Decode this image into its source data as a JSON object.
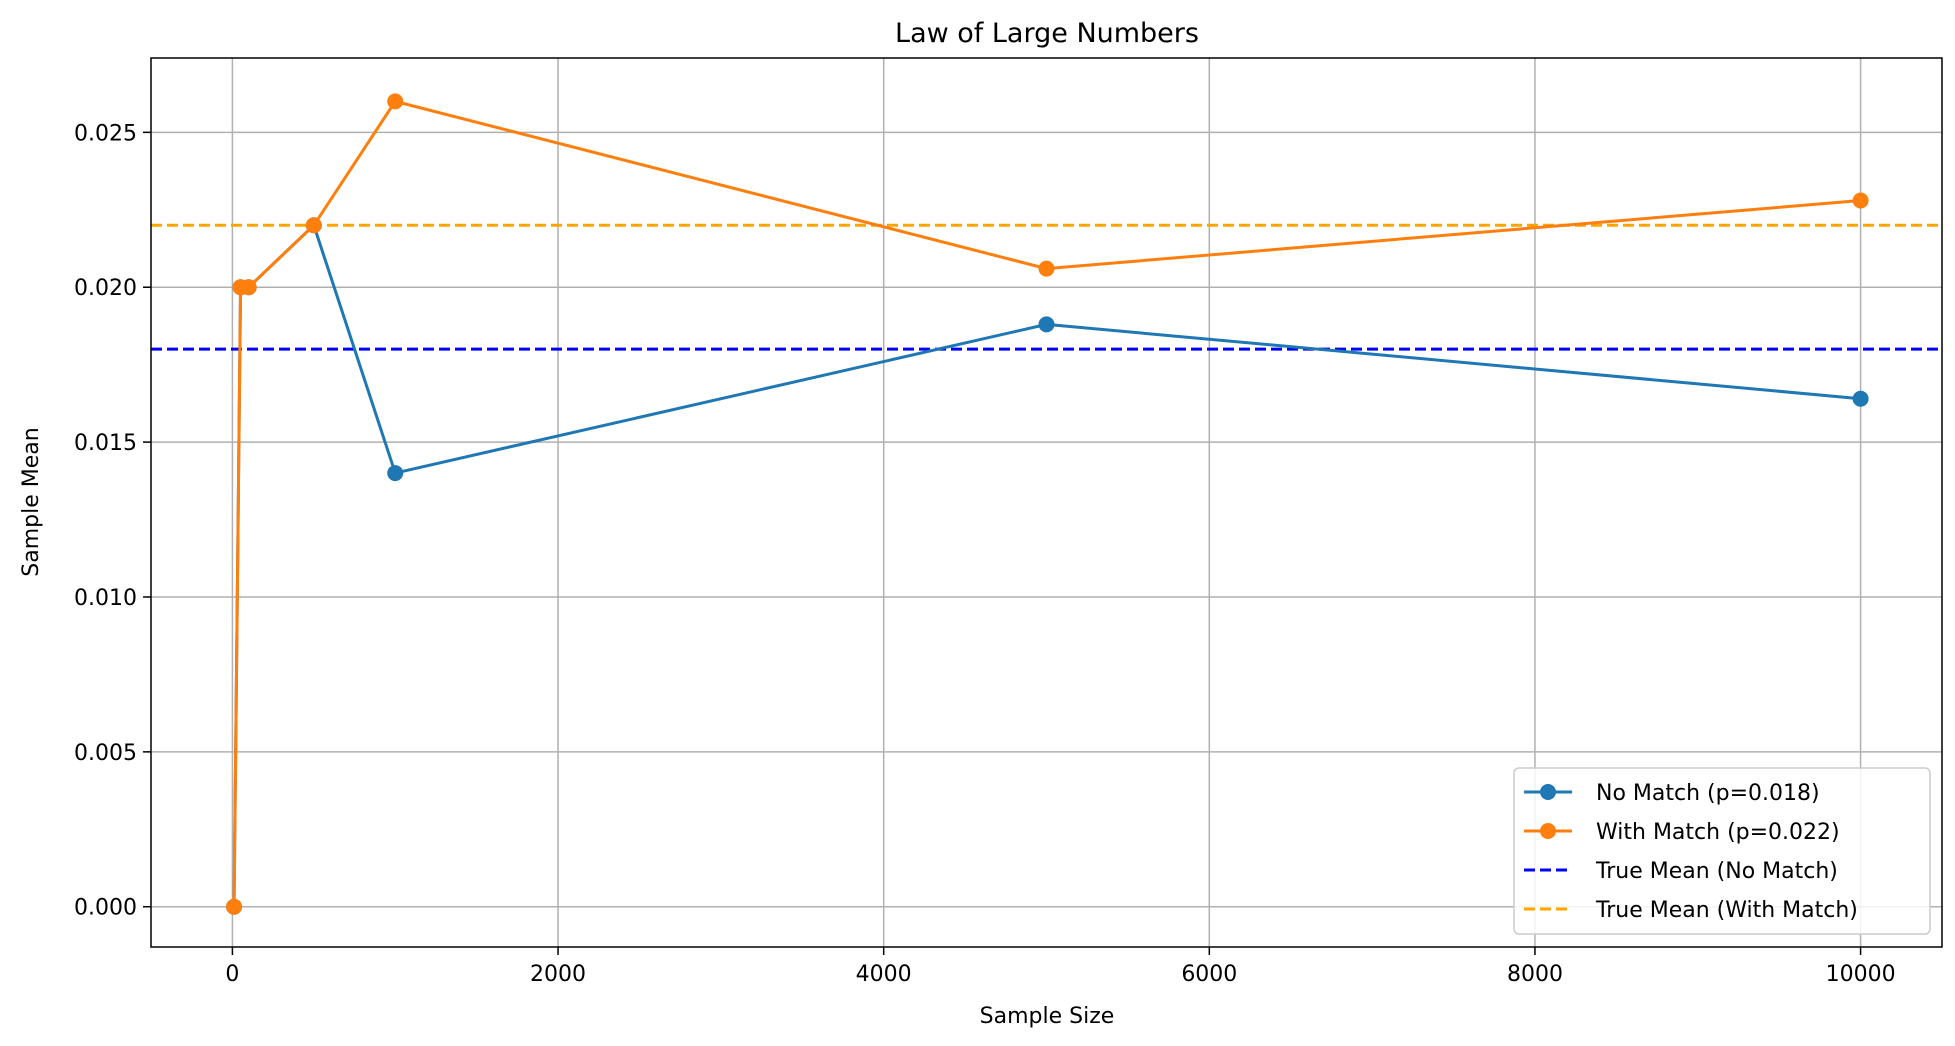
{
  "chart_data": {
    "type": "line",
    "title": "Law of Large Numbers",
    "xlabel": "Sample Size",
    "ylabel": "Sample Mean",
    "xlim": [
      -500,
      10500
    ],
    "ylim": [
      -0.0013,
      0.0274
    ],
    "xticks": [
      0,
      2000,
      4000,
      6000,
      8000,
      10000
    ],
    "xtick_labels": [
      "0",
      "2000",
      "4000",
      "6000",
      "8000",
      "10000"
    ],
    "yticks": [
      0.0,
      0.005,
      0.01,
      0.015,
      0.02,
      0.025
    ],
    "ytick_labels": [
      "0.000",
      "0.005",
      "0.010",
      "0.015",
      "0.020",
      "0.025"
    ],
    "grid": true,
    "legend_position": "lower-right",
    "series": [
      {
        "name": "No Match (p=0.018)",
        "color": "#1f77b4",
        "style": "solid",
        "marker": "circle",
        "x": [
          10,
          50,
          100,
          500,
          1000,
          5000,
          10000
        ],
        "values": [
          0.0,
          0.02,
          0.02,
          0.022,
          0.014,
          0.0188,
          0.0164
        ]
      },
      {
        "name": "With Match (p=0.022)",
        "color": "#ff7f0e",
        "style": "solid",
        "marker": "circle",
        "x": [
          10,
          50,
          100,
          500,
          1000,
          5000,
          10000
        ],
        "values": [
          0.0,
          0.02,
          0.02,
          0.022,
          0.026,
          0.0206,
          0.0228
        ]
      }
    ],
    "reference_lines": [
      {
        "name": "True Mean (No Match)",
        "y": 0.018,
        "color": "#0000ff",
        "style": "dashed"
      },
      {
        "name": "True Mean (With Match)",
        "y": 0.022,
        "color": "#ffa500",
        "style": "dashed"
      }
    ]
  }
}
